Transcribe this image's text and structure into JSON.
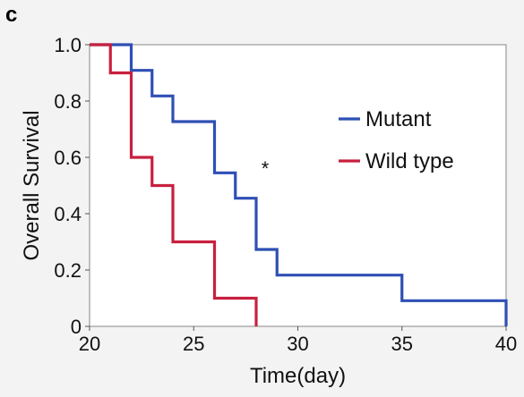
{
  "panel_label": "c",
  "chart_data": {
    "type": "line",
    "step": true,
    "title": "",
    "xlabel": "Time(day)",
    "ylabel": "Overall Survival",
    "xlim": [
      20,
      40
    ],
    "ylim": [
      0,
      1
    ],
    "xticks": [
      20,
      25,
      30,
      35,
      40
    ],
    "yticks": [
      0,
      0.2,
      0.4,
      0.6,
      0.8,
      1.0
    ],
    "ytick_labels": [
      "0",
      "0.2",
      "0.4",
      "0.6",
      "0.8",
      "1.0"
    ],
    "grid": false,
    "legend_position": "right",
    "annotation": "*",
    "series": [
      {
        "name": "Mutant",
        "color": "#2e4fb5",
        "x": [
          21,
          22,
          23,
          24,
          26,
          27,
          28,
          29,
          35,
          40
        ],
        "y": [
          1.0,
          0.909,
          0.818,
          0.727,
          0.545,
          0.455,
          0.273,
          0.182,
          0.091,
          0.0
        ]
      },
      {
        "name": "Wild type",
        "color": "#c8203f",
        "x": [
          21,
          22,
          23,
          24,
          26,
          28
        ],
        "y": [
          0.9,
          0.6,
          0.5,
          0.3,
          0.1,
          0.0
        ]
      }
    ]
  }
}
